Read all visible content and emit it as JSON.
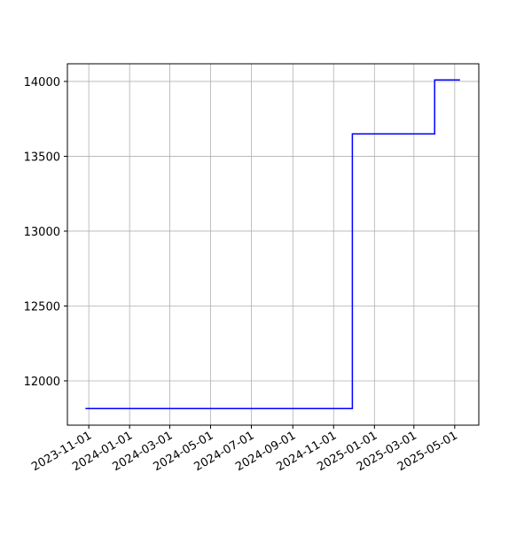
{
  "chart_data": {
    "type": "line",
    "drawstyle": "steps-post",
    "x": [
      "2023-10-27",
      "2024-11-29",
      "2025-04-01",
      "2025-05-09"
    ],
    "series": [
      {
        "color": "#0000ff",
        "values": [
          11815,
          13650,
          14010,
          14010
        ]
      }
    ],
    "xlim": [
      "2023-09-30",
      "2025-06-06"
    ],
    "xticks": [
      "2023-11-01",
      "2024-01-01",
      "2024-03-01",
      "2024-05-01",
      "2024-07-01",
      "2024-09-01",
      "2024-11-01",
      "2025-01-01",
      "2025-03-01",
      "2025-05-01"
    ],
    "ylim": [
      11704,
      14118
    ],
    "yticks": [
      12000,
      12500,
      13000,
      13500,
      14000
    ],
    "grid": true
  }
}
